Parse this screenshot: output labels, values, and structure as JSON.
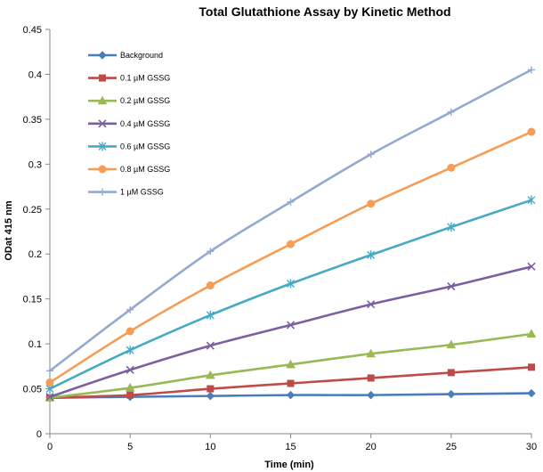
{
  "chart_data": {
    "type": "line",
    "title": "Total Glutathione Assay by Kinetic Method",
    "xlabel": "Time (min)",
    "ylabel": "ODat 415 nm",
    "x": [
      0,
      5,
      10,
      15,
      20,
      25,
      30
    ],
    "xlim": [
      0,
      30
    ],
    "ylim": [
      0,
      0.45
    ],
    "xticks": [
      "0",
      "5",
      "10",
      "15",
      "20",
      "25",
      "30"
    ],
    "yticks": [
      "0",
      "0.05",
      "0.1",
      "0.15",
      "0.2",
      "0.25",
      "0.3",
      "0.35",
      "0.4",
      "0.45"
    ],
    "grid": false,
    "legend_position": "top-left inside plot",
    "series": [
      {
        "name": "Background",
        "color": "#4a7ebb",
        "marker": "diamond",
        "values": [
          0.04,
          0.041,
          0.042,
          0.043,
          0.043,
          0.044,
          0.045
        ]
      },
      {
        "name": "0.1 µM GSSG",
        "color": "#be4b48",
        "marker": "square",
        "values": [
          0.04,
          0.043,
          0.05,
          0.056,
          0.062,
          0.068,
          0.074
        ]
      },
      {
        "name": "0.2 µM GSSG",
        "color": "#98b954",
        "marker": "triangle",
        "values": [
          0.04,
          0.051,
          0.065,
          0.077,
          0.089,
          0.099,
          0.111
        ]
      },
      {
        "name": "0.4 µM GSSG",
        "color": "#7d5fa0",
        "marker": "x",
        "values": [
          0.041,
          0.071,
          0.098,
          0.121,
          0.144,
          0.164,
          0.186
        ]
      },
      {
        "name": "0.6 µM GSSG",
        "color": "#46aac5",
        "marker": "star",
        "values": [
          0.05,
          0.093,
          0.132,
          0.167,
          0.199,
          0.23,
          0.26
        ]
      },
      {
        "name": "0.8 µM GSSG",
        "color": "#f59d56",
        "marker": "circle",
        "values": [
          0.057,
          0.114,
          0.165,
          0.211,
          0.256,
          0.296,
          0.336
        ]
      },
      {
        "name": "1 µM GSSG",
        "color": "#93a9cf",
        "marker": "plus",
        "values": [
          0.07,
          0.138,
          0.203,
          0.258,
          0.311,
          0.358,
          0.405
        ]
      }
    ]
  }
}
